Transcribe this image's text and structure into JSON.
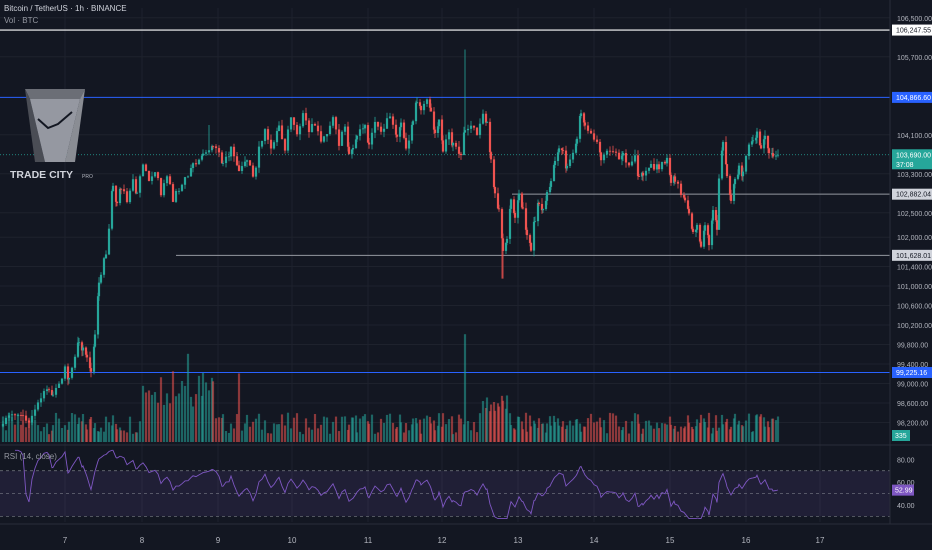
{
  "header": {
    "title": "Bitcoin / TetherUS · 1h · BINANCE",
    "volume_label": "Vol · BTC"
  },
  "logo": {
    "name": "TRADE CITY",
    "suffix": "PRO"
  },
  "rsi": {
    "label": "RSI (14, close)",
    "value_label": "52.99",
    "ticks": [
      "80.00",
      "60.00",
      "40.00"
    ]
  },
  "price_axis": {
    "ticks": [
      "106,500.00",
      "105,700.00",
      "104,100.00",
      "103,300.00",
      "102,500.00",
      "102,000.00",
      "101,400.00",
      "101,000.00",
      "100,600.00",
      "100,200.00",
      "99,800.00",
      "99,400.00",
      "99,000.00",
      "98,600.00",
      "98,200.00"
    ],
    "volume_label": "335",
    "countdown": "37:08"
  },
  "levels": [
    {
      "price": 106247.55,
      "label": "106,247.55",
      "color": "#ffffff"
    },
    {
      "price": 104866.6,
      "label": "104,866.60",
      "color": "#2962ff"
    },
    {
      "price": 103690.0,
      "label": "103,690.00",
      "color": "#26a69a"
    },
    {
      "price": 102882.04,
      "label": "102,882.04",
      "color": "#9598a1"
    },
    {
      "price": 101628.01,
      "label": "101,628.01",
      "color": "#9598a1"
    },
    {
      "price": 99225.16,
      "label": "99,225.16",
      "color": "#2962ff"
    }
  ],
  "colors": {
    "up": "#26a69a",
    "down": "#ef5350",
    "rsi": "#7e57c2",
    "background": "#131722"
  },
  "chart_data": {
    "type": "candlestick",
    "title": "Bitcoin / TetherUS · 1h · BINANCE",
    "x_ticks": [
      "7",
      "8",
      "9",
      "10",
      "11",
      "12",
      "13",
      "14",
      "15",
      "16",
      "17"
    ],
    "y_range": [
      97800,
      106700
    ],
    "anchors": [
      [
        0,
        98250
      ],
      [
        12,
        98400
      ],
      [
        20,
        98300
      ],
      [
        26,
        98200
      ],
      [
        32,
        98500
      ],
      [
        38,
        98700
      ],
      [
        46,
        98900
      ],
      [
        50,
        98800
      ],
      [
        56,
        99000
      ],
      [
        62,
        99300
      ],
      [
        66,
        99100
      ],
      [
        72,
        99600
      ],
      [
        76,
        99900
      ],
      [
        80,
        99700
      ],
      [
        84,
        99600
      ],
      [
        88,
        99250
      ],
      [
        92,
        100000
      ],
      [
        96,
        101000
      ],
      [
        98,
        101300
      ],
      [
        101,
        101500
      ],
      [
        103,
        101700
      ],
      [
        106,
        102200
      ],
      [
        110,
        103100
      ],
      [
        114,
        102700
      ],
      [
        118,
        103000
      ],
      [
        124,
        102800
      ],
      [
        130,
        103200
      ],
      [
        134,
        102900
      ],
      [
        140,
        103500
      ],
      [
        146,
        103100
      ],
      [
        152,
        103400
      ],
      [
        158,
        102900
      ],
      [
        164,
        103300
      ],
      [
        170,
        102800
      ],
      [
        176,
        103000
      ],
      [
        182,
        103200
      ],
      [
        190,
        103500
      ],
      [
        200,
        103700
      ],
      [
        210,
        103900
      ],
      [
        220,
        103500
      ],
      [
        228,
        103800
      ],
      [
        236,
        103400
      ],
      [
        244,
        103600
      ],
      [
        250,
        103200
      ],
      [
        256,
        103800
      ],
      [
        262,
        104200
      ],
      [
        268,
        103800
      ],
      [
        276,
        104300
      ],
      [
        282,
        103800
      ],
      [
        288,
        104500
      ],
      [
        294,
        104100
      ],
      [
        300,
        104600
      ],
      [
        306,
        104200
      ],
      [
        312,
        104300
      ],
      [
        318,
        103900
      ],
      [
        324,
        104100
      ],
      [
        330,
        104400
      ],
      [
        336,
        103900
      ],
      [
        342,
        104300
      ],
      [
        346,
        103700
      ],
      [
        350,
        103800
      ],
      [
        354,
        104100
      ],
      [
        362,
        104300
      ],
      [
        366,
        103900
      ],
      [
        372,
        104300
      ],
      [
        378,
        104100
      ],
      [
        384,
        104500
      ],
      [
        390,
        104300
      ],
      [
        394,
        104100
      ],
      [
        398,
        104300
      ],
      [
        403,
        103800
      ],
      [
        410,
        104400
      ],
      [
        414,
        104800
      ],
      [
        418,
        104600
      ],
      [
        424,
        104900
      ],
      [
        428,
        104500
      ],
      [
        432,
        104200
      ],
      [
        436,
        104400
      ],
      [
        440,
        103800
      ],
      [
        446,
        104100
      ],
      [
        450,
        103900
      ],
      [
        458,
        103700
      ],
      [
        462,
        104200
      ],
      [
        468,
        104300
      ],
      [
        474,
        104100
      ],
      [
        480,
        104500
      ],
      [
        484,
        104300
      ],
      [
        488,
        103600
      ],
      [
        492,
        102900
      ],
      [
        496,
        102500
      ],
      [
        500,
        101700
      ],
      [
        504,
        102000
      ],
      [
        508,
        102700
      ],
      [
        512,
        102400
      ],
      [
        516,
        102900
      ],
      [
        520,
        102600
      ],
      [
        524,
        102000
      ],
      [
        528,
        101800
      ],
      [
        532,
        102400
      ],
      [
        536,
        102700
      ],
      [
        540,
        102600
      ],
      [
        544,
        102900
      ],
      [
        548,
        103100
      ],
      [
        552,
        103500
      ],
      [
        556,
        103800
      ],
      [
        560,
        103700
      ],
      [
        564,
        103400
      ],
      [
        570,
        103800
      ],
      [
        574,
        104000
      ],
      [
        578,
        104600
      ],
      [
        582,
        104300
      ],
      [
        588,
        104100
      ],
      [
        594,
        103900
      ],
      [
        598,
        103600
      ],
      [
        604,
        103800
      ],
      [
        610,
        103800
      ],
      [
        616,
        103600
      ],
      [
        620,
        103800
      ],
      [
        626,
        103400
      ],
      [
        632,
        103600
      ],
      [
        636,
        103200
      ],
      [
        640,
        103300
      ],
      [
        648,
        103500
      ],
      [
        656,
        103400
      ],
      [
        664,
        103600
      ],
      [
        668,
        103100
      ],
      [
        672,
        103200
      ],
      [
        678,
        102900
      ],
      [
        682,
        102800
      ],
      [
        686,
        102500
      ],
      [
        690,
        102100
      ],
      [
        694,
        102200
      ],
      [
        698,
        101800
      ],
      [
        702,
        102200
      ],
      [
        706,
        101900
      ],
      [
        710,
        102500
      ],
      [
        714,
        102200
      ],
      [
        716,
        103200
      ],
      [
        720,
        103900
      ],
      [
        724,
        103300
      ],
      [
        728,
        102700
      ],
      [
        732,
        103200
      ],
      [
        736,
        103400
      ],
      [
        740,
        103300
      ],
      [
        746,
        103900
      ],
      [
        750,
        104000
      ],
      [
        754,
        104100
      ],
      [
        758,
        103800
      ],
      [
        762,
        104000
      ],
      [
        766,
        103800
      ],
      [
        770,
        103600
      ],
      [
        775,
        103690
      ]
    ]
  }
}
